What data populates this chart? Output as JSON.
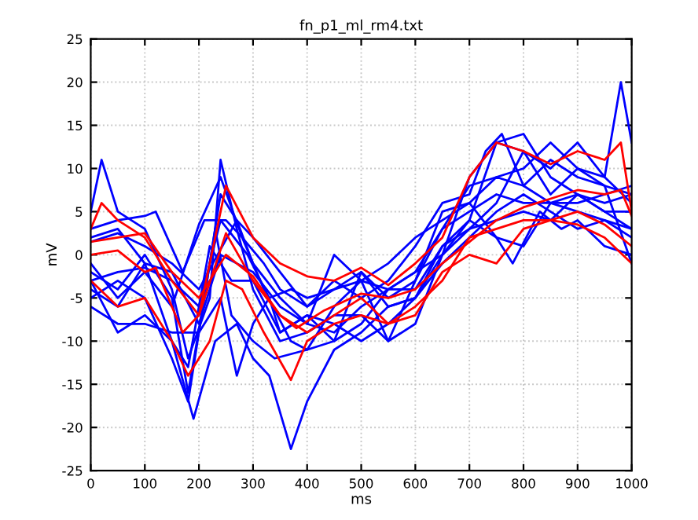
{
  "chart_data": {
    "type": "line",
    "title": "fn_p1_ml_rm4.txt",
    "xlabel": "ms",
    "ylabel": "mV",
    "xlim": [
      0,
      1000
    ],
    "xticks": [
      0,
      100,
      200,
      300,
      400,
      500,
      600,
      700,
      800,
      900,
      1000
    ],
    "ylim": [
      -25,
      25
    ],
    "yticks": [
      -25,
      -20,
      -15,
      -10,
      -5,
      0,
      5,
      10,
      15,
      20,
      25
    ],
    "grid": true,
    "series": [
      {
        "color": "#0000ff",
        "x": [
          0,
          20,
          50,
          100,
          150,
          180,
          220,
          240,
          270,
          300,
          350,
          400,
          450,
          500,
          550,
          600,
          650,
          700,
          750,
          800,
          850,
          900,
          950,
          980,
          1000
        ],
        "values": [
          5,
          11,
          5,
          3,
          -4,
          -12,
          -5,
          11,
          3,
          -4,
          -10,
          -9,
          -7,
          -7,
          -10,
          -8,
          0,
          9,
          13,
          12,
          10,
          13,
          9,
          20,
          13
        ]
      },
      {
        "color": "#0000ff",
        "x": [
          0,
          50,
          100,
          120,
          170,
          210,
          250,
          280,
          320,
          350,
          400,
          450,
          500,
          550,
          600,
          650,
          700,
          730,
          760,
          800,
          850,
          900,
          950,
          1000
        ],
        "values": [
          3,
          4,
          4.5,
          5,
          -2,
          4,
          4,
          2,
          -1,
          -4,
          -6,
          -3,
          -5,
          -3,
          1,
          6,
          7,
          12,
          14,
          8,
          11,
          9,
          8,
          7
        ]
      },
      {
        "color": "#0000ff",
        "x": [
          0,
          50,
          100,
          150,
          190,
          230,
          270,
          300,
          330,
          370,
          400,
          450,
          500,
          550,
          600,
          650,
          700,
          750,
          800,
          850,
          900,
          950,
          1000
        ],
        "values": [
          -3,
          -9,
          -7,
          -10,
          -19,
          -10,
          -8,
          -12,
          -14,
          -22.5,
          -17,
          -11,
          -9,
          -6,
          -5,
          0,
          3,
          4,
          5,
          4,
          7,
          5,
          3
        ]
      },
      {
        "color": "#0000ff",
        "x": [
          0,
          50,
          100,
          150,
          180,
          210,
          240,
          270,
          300,
          350,
          400,
          450,
          500,
          550,
          600,
          650,
          700,
          750,
          780,
          830,
          870,
          900,
          950,
          1000
        ],
        "values": [
          -2,
          -4,
          0,
          -5,
          -16,
          -5,
          7,
          4,
          -1,
          -5,
          -8,
          0,
          -3,
          -10,
          -3,
          5,
          6,
          2,
          -1,
          5,
          3,
          4,
          1,
          0
        ]
      },
      {
        "color": "#0000ff",
        "x": [
          0,
          50,
          100,
          150,
          180,
          230,
          260,
          300,
          340,
          400,
          450,
          500,
          550,
          600,
          650,
          700,
          750,
          800,
          850,
          900,
          950,
          1000
        ],
        "values": [
          -5,
          -3,
          -5,
          -12,
          -17,
          3,
          -7,
          -10,
          -12,
          -11,
          -10,
          -8,
          -4,
          -2,
          0,
          4,
          13,
          14,
          9,
          7,
          6,
          7
        ]
      },
      {
        "color": "#0000ff",
        "x": [
          0,
          50,
          100,
          150,
          200,
          240,
          270,
          300,
          330,
          350,
          400,
          450,
          500,
          550,
          600,
          650,
          700,
          750,
          800,
          850,
          900,
          950,
          1000
        ],
        "values": [
          -6,
          -8,
          -8,
          -9,
          -9,
          -5,
          -14,
          -8,
          -5,
          -9,
          -7,
          -10,
          -2,
          -6,
          -5,
          1,
          4,
          2,
          1,
          6,
          5,
          4,
          3
        ]
      },
      {
        "color": "#0000ff",
        "x": [
          0,
          50,
          100,
          150,
          200,
          230,
          270,
          300,
          350,
          400,
          450,
          500,
          550,
          600,
          650,
          700,
          750,
          800,
          850,
          900,
          950,
          1000
        ],
        "values": [
          1.5,
          2.5,
          1,
          -1,
          -4,
          -0.5,
          4,
          2,
          -2,
          -6,
          -4,
          -3,
          -1,
          2,
          4,
          6,
          9,
          8,
          6,
          7,
          5,
          5
        ]
      },
      {
        "color": "#0000ff",
        "x": [
          0,
          50,
          100,
          150,
          200,
          240,
          280,
          320,
          370,
          400,
          450,
          500,
          550,
          600,
          650,
          700,
          750,
          800,
          850,
          900,
          950,
          1000
        ],
        "values": [
          -1,
          -5,
          -2,
          -6,
          3.5,
          9,
          2,
          -4,
          -10,
          -11,
          -6,
          -3,
          -4,
          -2,
          3,
          5,
          7,
          6,
          6,
          6,
          7,
          8
        ]
      },
      {
        "color": "#0000ff",
        "x": [
          0,
          50,
          100,
          150,
          200,
          240,
          290,
          330,
          370,
          400,
          450,
          500,
          550,
          600,
          650,
          700,
          750,
          800,
          850,
          900,
          950,
          1000
        ],
        "values": [
          -3,
          -2,
          -1.5,
          -3,
          -6,
          4,
          0,
          -5,
          -4,
          -5,
          -4,
          -2,
          -5,
          -3,
          3,
          8,
          9,
          10,
          13,
          10,
          8,
          -1
        ]
      },
      {
        "color": "#0000ff",
        "x": [
          0,
          50,
          100,
          150,
          180,
          220,
          260,
          300,
          350,
          400,
          450,
          500,
          550,
          600,
          650,
          700,
          750,
          800,
          850,
          900,
          950,
          1000
        ],
        "values": [
          -4,
          -6,
          -1,
          -10,
          -13,
          1,
          -3,
          -3,
          -9,
          -7,
          -8,
          -10,
          -8,
          -5,
          -1,
          2,
          5,
          7,
          5,
          3,
          4,
          2
        ]
      },
      {
        "color": "#0000ff",
        "x": [
          0,
          50,
          100,
          150,
          200,
          240,
          300,
          350,
          400,
          450,
          500,
          550,
          600,
          650,
          700,
          750,
          800,
          850,
          900,
          950,
          1000
        ],
        "values": [
          2,
          3,
          -1,
          -2,
          -8,
          0,
          -2,
          -6,
          -8,
          -9,
          -6,
          -4,
          -4,
          1,
          3,
          6,
          12,
          7,
          10,
          9,
          6
        ]
      },
      {
        "color": "#ff0000",
        "x": [
          0,
          20,
          50,
          100,
          150,
          200,
          250,
          300,
          350,
          400,
          450,
          500,
          550,
          600,
          650,
          700,
          750,
          800,
          850,
          900,
          950,
          980,
          1000
        ],
        "values": [
          3,
          6,
          4,
          2,
          -3,
          -7,
          8,
          2,
          -1,
          -2.5,
          -3,
          -1.5,
          -3.5,
          -1,
          2,
          9,
          13,
          12,
          10.5,
          12,
          11,
          13,
          5
        ]
      },
      {
        "color": "#ff0000",
        "x": [
          0,
          50,
          100,
          150,
          180,
          220,
          250,
          280,
          320,
          370,
          400,
          450,
          500,
          550,
          600,
          650,
          700,
          750,
          800,
          850,
          900,
          950,
          1000
        ],
        "values": [
          -3,
          -6,
          -5,
          -10,
          -14,
          -10,
          -3,
          -4,
          -9,
          -14.5,
          -10,
          -8,
          -7,
          -8,
          -7,
          -2,
          0,
          -1,
          3,
          4,
          3.5,
          2,
          -1
        ]
      },
      {
        "color": "#ff0000",
        "x": [
          0,
          50,
          100,
          150,
          200,
          250,
          300,
          350,
          400,
          450,
          500,
          550,
          600,
          650,
          700,
          750,
          800,
          850,
          900,
          950,
          1000
        ],
        "values": [
          1.5,
          2,
          2.5,
          -2,
          -5,
          0,
          -2.5,
          -7,
          -9,
          -7,
          -5,
          -8,
          -6,
          -3,
          2,
          3,
          4,
          4,
          5,
          3.5,
          1
        ]
      },
      {
        "color": "#ff0000",
        "x": [
          0,
          50,
          100,
          120,
          170,
          200,
          250,
          300,
          350,
          380,
          430,
          500,
          550,
          600,
          650,
          700,
          750,
          800,
          850,
          900,
          950,
          980,
          1000
        ],
        "values": [
          0,
          0.5,
          -2,
          -1.5,
          -9,
          -7,
          2.5,
          -3,
          -7,
          -8.5,
          -6.5,
          -4.5,
          -5,
          -4,
          -1,
          1.5,
          4,
          5.5,
          6.5,
          7.5,
          7,
          7.5,
          4.5
        ]
      }
    ]
  }
}
